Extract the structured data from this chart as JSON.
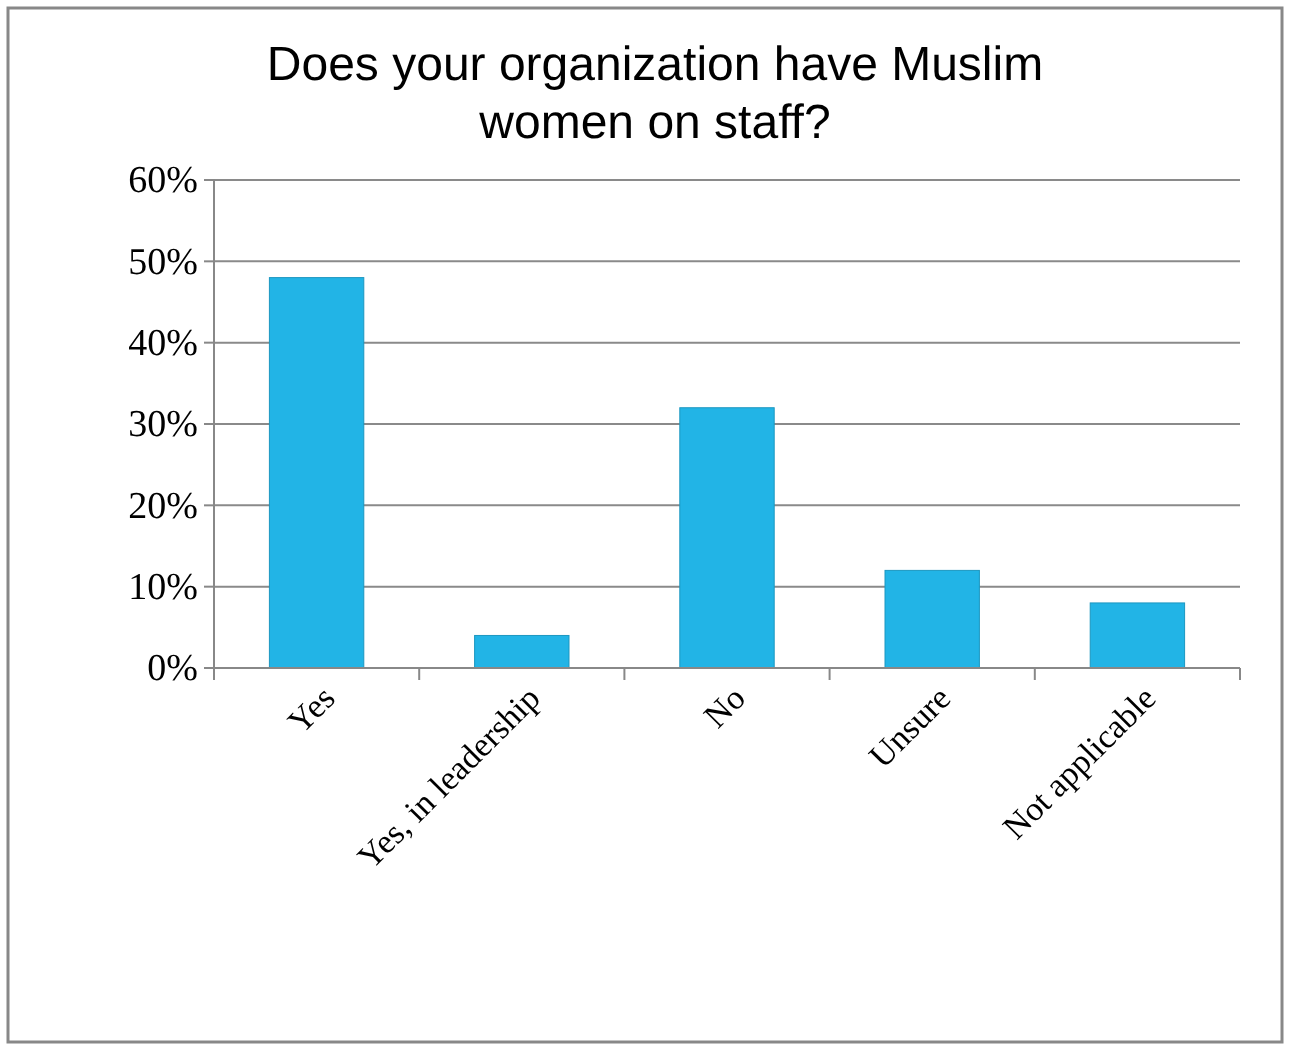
{
  "chart_data": {
    "type": "bar",
    "title": "Does your organization have Muslim women on staff?",
    "categories": [
      "Yes",
      "Yes, in leadership",
      "No",
      "Unsure",
      "Not applicable"
    ],
    "values": [
      48,
      4,
      32,
      12,
      8
    ],
    "color": "#22b4e6",
    "ylim": [
      0,
      60
    ],
    "yticks": [
      {
        "value": 0,
        "label": "0%"
      },
      {
        "value": 10,
        "label": "10%"
      },
      {
        "value": 20,
        "label": "20%"
      },
      {
        "value": 30,
        "label": "30%"
      },
      {
        "value": 40,
        "label": "40%"
      },
      {
        "value": 50,
        "label": "50%"
      },
      {
        "value": 60,
        "label": "60%"
      }
    ],
    "grid": "y"
  }
}
